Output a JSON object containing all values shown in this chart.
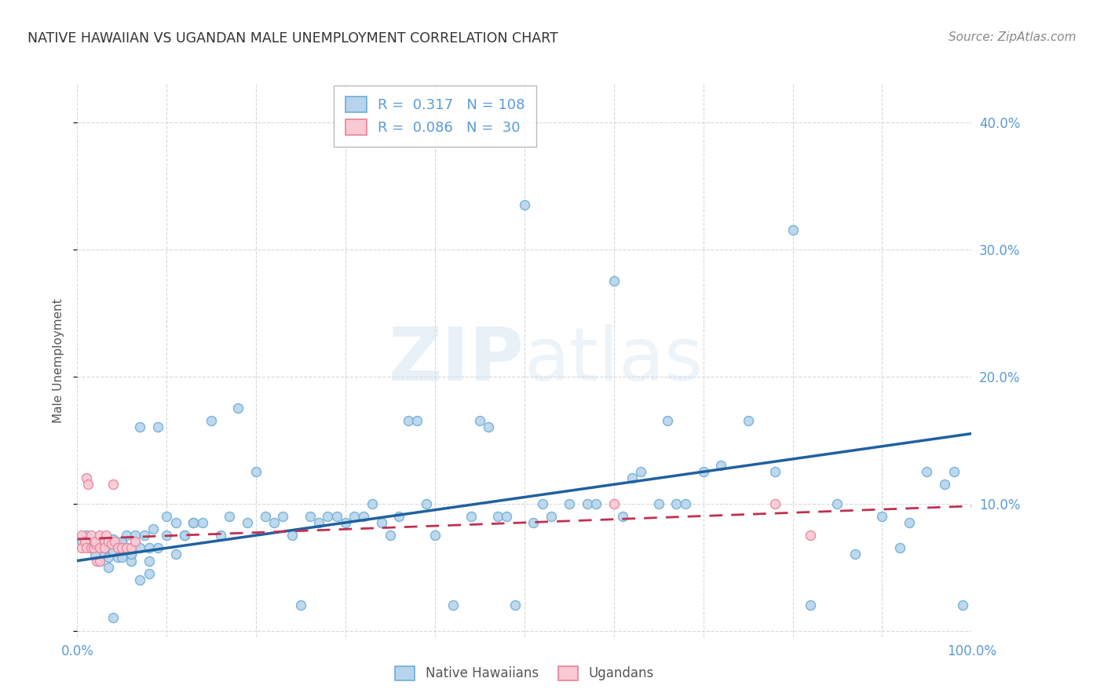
{
  "title": "NATIVE HAWAIIAN VS UGANDAN MALE UNEMPLOYMENT CORRELATION CHART",
  "source": "Source: ZipAtlas.com",
  "ylabel": "Male Unemployment",
  "background_color": "#ffffff",
  "watermark_zip": "ZIP",
  "watermark_atlas": "atlas",
  "xlim": [
    0,
    1.0
  ],
  "ylim": [
    -0.005,
    0.43
  ],
  "xticks": [
    0.0,
    0.1,
    0.2,
    0.3,
    0.4,
    0.5,
    0.6,
    0.7,
    0.8,
    0.9,
    1.0
  ],
  "yticks": [
    0.0,
    0.1,
    0.2,
    0.3,
    0.4
  ],
  "ytick_labels": [
    "",
    "10.0%",
    "20.0%",
    "30.0%",
    "40.0%"
  ],
  "xtick_labels": [
    "0.0%",
    "",
    "",
    "",
    "",
    "",
    "",
    "",
    "",
    "",
    "100.0%"
  ],
  "hawaiian_scatter_x": [
    0.005,
    0.01,
    0.015,
    0.02,
    0.02,
    0.025,
    0.025,
    0.03,
    0.03,
    0.035,
    0.035,
    0.04,
    0.04,
    0.045,
    0.045,
    0.05,
    0.05,
    0.055,
    0.055,
    0.06,
    0.06,
    0.065,
    0.07,
    0.07,
    0.075,
    0.08,
    0.08,
    0.085,
    0.09,
    0.09,
    0.1,
    0.1,
    0.11,
    0.11,
    0.12,
    0.12,
    0.13,
    0.13,
    0.14,
    0.15,
    0.16,
    0.17,
    0.18,
    0.19,
    0.2,
    0.21,
    0.22,
    0.23,
    0.24,
    0.25,
    0.26,
    0.27,
    0.28,
    0.29,
    0.3,
    0.31,
    0.32,
    0.33,
    0.34,
    0.35,
    0.36,
    0.37,
    0.38,
    0.39,
    0.4,
    0.42,
    0.44,
    0.45,
    0.46,
    0.47,
    0.48,
    0.49,
    0.5,
    0.51,
    0.52,
    0.53,
    0.55,
    0.57,
    0.58,
    0.6,
    0.61,
    0.62,
    0.63,
    0.65,
    0.66,
    0.67,
    0.68,
    0.7,
    0.72,
    0.75,
    0.78,
    0.8,
    0.82,
    0.85,
    0.87,
    0.9,
    0.92,
    0.93,
    0.95,
    0.97,
    0.98,
    0.99,
    0.03,
    0.04,
    0.05,
    0.06,
    0.07,
    0.08
  ],
  "hawaiian_scatter_y": [
    0.07,
    0.075,
    0.065,
    0.07,
    0.06,
    0.065,
    0.055,
    0.068,
    0.06,
    0.058,
    0.05,
    0.072,
    0.062,
    0.058,
    0.068,
    0.07,
    0.058,
    0.065,
    0.075,
    0.06,
    0.055,
    0.075,
    0.065,
    0.16,
    0.075,
    0.065,
    0.055,
    0.08,
    0.065,
    0.16,
    0.09,
    0.075,
    0.085,
    0.06,
    0.075,
    0.075,
    0.085,
    0.085,
    0.085,
    0.165,
    0.075,
    0.09,
    0.175,
    0.085,
    0.125,
    0.09,
    0.085,
    0.09,
    0.075,
    0.02,
    0.09,
    0.085,
    0.09,
    0.09,
    0.085,
    0.09,
    0.09,
    0.1,
    0.085,
    0.075,
    0.09,
    0.165,
    0.165,
    0.1,
    0.075,
    0.02,
    0.09,
    0.165,
    0.16,
    0.09,
    0.09,
    0.02,
    0.335,
    0.085,
    0.1,
    0.09,
    0.1,
    0.1,
    0.1,
    0.275,
    0.09,
    0.12,
    0.125,
    0.1,
    0.165,
    0.1,
    0.1,
    0.125,
    0.13,
    0.165,
    0.125,
    0.315,
    0.02,
    0.1,
    0.06,
    0.09,
    0.065,
    0.085,
    0.125,
    0.115,
    0.125,
    0.02,
    0.065,
    0.01,
    0.07,
    0.06,
    0.04,
    0.045
  ],
  "ugandan_scatter_x": [
    0.005,
    0.005,
    0.008,
    0.01,
    0.01,
    0.012,
    0.015,
    0.015,
    0.018,
    0.02,
    0.02,
    0.022,
    0.025,
    0.025,
    0.025,
    0.03,
    0.03,
    0.032,
    0.035,
    0.038,
    0.04,
    0.042,
    0.045,
    0.05,
    0.055,
    0.06,
    0.065,
    0.6,
    0.78,
    0.82
  ],
  "ugandan_scatter_y": [
    0.065,
    0.075,
    0.07,
    0.065,
    0.12,
    0.115,
    0.075,
    0.065,
    0.065,
    0.068,
    0.07,
    0.055,
    0.065,
    0.075,
    0.055,
    0.07,
    0.065,
    0.075,
    0.07,
    0.068,
    0.115,
    0.07,
    0.065,
    0.065,
    0.065,
    0.065,
    0.07,
    0.1,
    0.1,
    0.075
  ],
  "hawaiian_line_x": [
    0.0,
    1.0
  ],
  "hawaiian_line_y": [
    0.055,
    0.155
  ],
  "ugandan_line_x": [
    0.0,
    1.0
  ],
  "ugandan_line_y": [
    0.072,
    0.098
  ],
  "tick_color": "#5b9bd5",
  "grid_color": "#d8d8d8",
  "scatter_size": 75,
  "hawaiian_face_color": "#b8d4ec",
  "hawaiian_edge_color": "#6baed6",
  "ugandan_face_color": "#f9c9d4",
  "ugandan_edge_color": "#e8829a",
  "line_hawaiian_color": "#2060a0",
  "line_ugandan_color": "#c03050",
  "legend_r_hawaiian": "0.317",
  "legend_n_hawaiian": "108",
  "legend_r_ugandan": "0.086",
  "legend_n_ugandan": "30"
}
